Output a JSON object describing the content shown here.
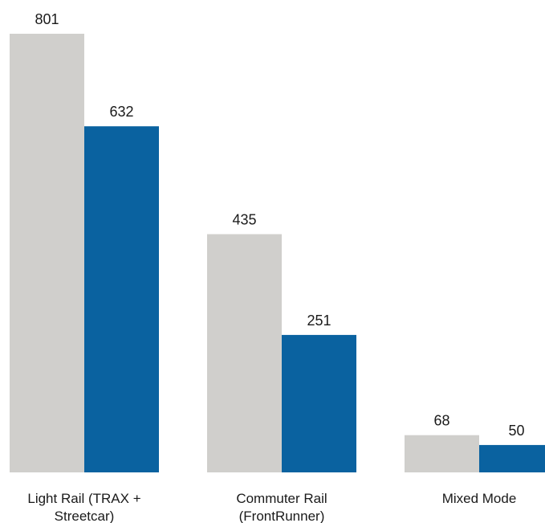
{
  "chart_data": {
    "type": "bar",
    "categories": [
      [
        "Light Rail (TRAX +",
        "Streetcar)"
      ],
      [
        "Commuter Rail",
        "(FrontRunner)"
      ],
      [
        "Mixed Mode"
      ]
    ],
    "series": [
      {
        "values": [
          801,
          435,
          68
        ],
        "color": "#d0cfcc"
      },
      {
        "values": [
          632,
          251,
          50
        ],
        "color": "#0a62a0"
      }
    ],
    "ylim": [
      0,
      801
    ],
    "grid": false,
    "legend": "none",
    "title": "",
    "xlabel": "",
    "ylabel": ""
  }
}
